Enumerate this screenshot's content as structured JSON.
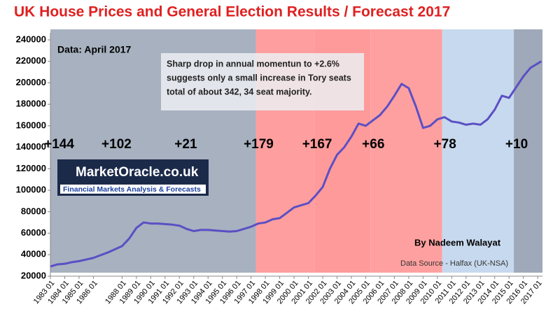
{
  "chart_data": {
    "type": "line",
    "title": "UK House Prices and General Election Results / Forecast 2017",
    "data_note": "Data:  April 2017",
    "annotation": {
      "lines": [
        "Sharp drop in annual momentun to +2.6%",
        "suggests only  a small increase in Tory seats",
        "total of about 342,  34 seat majority."
      ]
    },
    "logo": {
      "name": "MarketOracle.co.uk",
      "tagline": "Financial Markets Analysis & Forecasts"
    },
    "author": "By Nadeem Walayat",
    "source": "Data Source - Halfax (UK-NSA)",
    "color": "#5b4fc4",
    "x": [
      "1983 01",
      "1983 07",
      "1984 01",
      "1984 07",
      "1985 01",
      "1985 07",
      "1986 01",
      "1986 07",
      "1987 01",
      "1987 07",
      "1988 01",
      "1988 07",
      "1989 01",
      "1989 07",
      "1990 01",
      "1990 07",
      "1991 01",
      "1991 07",
      "1992 01",
      "1992 07",
      "1993 01",
      "1993 07",
      "1994 01",
      "1994 07",
      "1995 01",
      "1995 07",
      "1996 01",
      "1996 07",
      "1997 01",
      "1997 07",
      "1998 01",
      "1998 07",
      "1999 01",
      "1999 07",
      "2000 01",
      "2000 07",
      "2001 01",
      "2001 07",
      "2002 01",
      "2002 07",
      "2003 01",
      "2003 07",
      "2004 01",
      "2004 07",
      "2005 01",
      "2005 07",
      "2006 01",
      "2006 07",
      "2007 01",
      "2007 07",
      "2008 01",
      "2008 07",
      "2009 01",
      "2009 07",
      "2010 01",
      "2010 07",
      "2011 01",
      "2011 07",
      "2012 01",
      "2012 07",
      "2013 01",
      "2013 07",
      "2014 01",
      "2014 07",
      "2015 01",
      "2015 07",
      "2016 01",
      "2016 07",
      "2017 01",
      "2017 04"
    ],
    "values": [
      29000,
      31000,
      31500,
      33000,
      34000,
      35500,
      37000,
      39500,
      42000,
      45000,
      48000,
      55000,
      65000,
      70000,
      69000,
      69000,
      68500,
      68000,
      67000,
      64000,
      62000,
      63000,
      63000,
      62500,
      62000,
      61500,
      62000,
      64000,
      66000,
      69000,
      70000,
      73000,
      74000,
      79000,
      84000,
      86000,
      88000,
      95000,
      103000,
      120000,
      133000,
      140000,
      150000,
      162000,
      160000,
      165000,
      170000,
      178000,
      188000,
      199000,
      195000,
      178000,
      158000,
      160000,
      166000,
      168000,
      164000,
      163000,
      161000,
      162000,
      161000,
      166000,
      175000,
      188000,
      186000,
      196000,
      206000,
      214000,
      218000,
      220000
    ],
    "xlim": [
      "1983 01",
      "2017 05"
    ],
    "xticks": [
      "1983 01",
      "1984 01",
      "1985 01",
      "1986 01",
      "1988 01",
      "1989 01",
      "1990 01",
      "1991 01",
      "1992 01",
      "1993 01",
      "1994 01",
      "1995 01",
      "1996 01",
      "1997 01",
      "1998 01",
      "1999 01",
      "2000 01",
      "2001 01",
      "2002 01",
      "2003 01",
      "2004 01",
      "2005 01",
      "2006 01",
      "2007 01",
      "2008 01",
      "2009 01",
      "2010 01",
      "2011 01",
      "2012 01",
      "2013 01",
      "2014 01",
      "2015 01",
      "2016 01",
      "2017 01"
    ],
    "ylim": [
      20000,
      240000
    ],
    "yticks": [
      20000,
      40000,
      60000,
      80000,
      100000,
      120000,
      140000,
      160000,
      180000,
      200000,
      220000,
      240000
    ],
    "periods": [
      {
        "start": "1983 01",
        "end": "1997 05",
        "color": "#a7b1c0"
      },
      {
        "start": "1997 05",
        "end": "2001 06",
        "color": "#ff9e9e"
      },
      {
        "start": "2001 06",
        "end": "2005 05",
        "color": "#ff9a9a"
      },
      {
        "start": "2005 05",
        "end": "2010 05",
        "color": "#ffa0a0"
      },
      {
        "start": "2010 05",
        "end": "2015 05",
        "color": "#c7d9ee"
      },
      {
        "start": "2015 05",
        "end": "2017 05",
        "color": "#9fa9b9"
      }
    ],
    "elections": [
      {
        "date": "1983 06",
        "label": "+144"
      },
      {
        "date": "1987 06",
        "label": "+102"
      },
      {
        "date": "1992 04",
        "label": "+21"
      },
      {
        "date": "1997 05",
        "label": "+179"
      },
      {
        "date": "2001 06",
        "label": "+167"
      },
      {
        "date": "2005 05",
        "label": "+66"
      },
      {
        "date": "2010 05",
        "label": "+78"
      },
      {
        "date": "2015 05",
        "label": "+10"
      }
    ]
  }
}
